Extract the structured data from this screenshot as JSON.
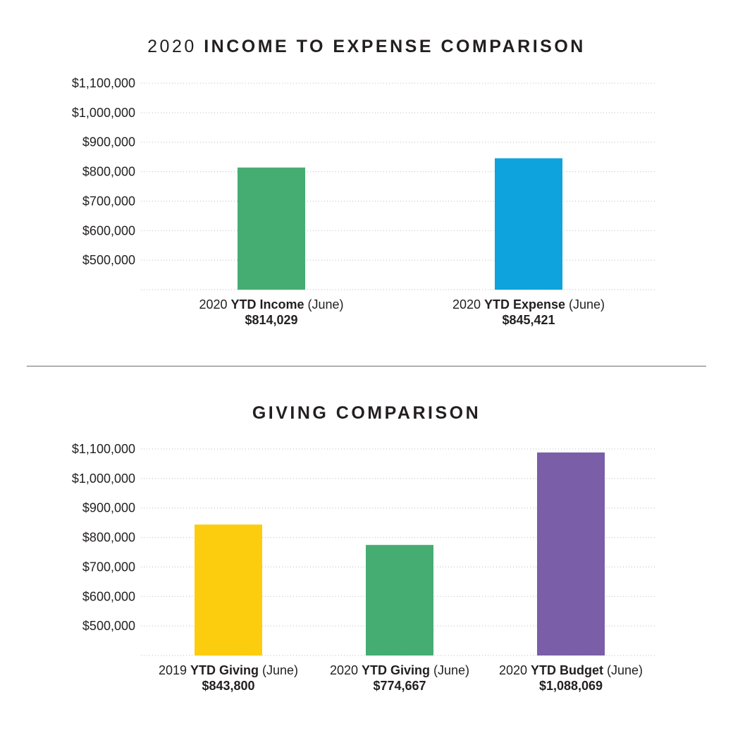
{
  "chart_data": [
    {
      "type": "bar",
      "title_prefix": "2020",
      "title": "INCOME TO EXPENSE COMPARISON",
      "yticks": [
        "$1,100,000",
        "$1,000,000",
        "$900,000",
        "$800,000",
        "$700,000",
        "$600,000",
        "$500,000"
      ],
      "ytick_values": [
        1100000,
        1000000,
        900000,
        800000,
        700000,
        600000,
        500000
      ],
      "ylim": [
        400000,
        1100000
      ],
      "grid": true,
      "categories": [
        {
          "pre": "2020 ",
          "bold": "YTD Income",
          "post": " (June)",
          "value_label": "$814,029"
        },
        {
          "pre": "2020 ",
          "bold": "YTD Expense",
          "post": " (June)",
          "value_label": "$845,421"
        }
      ],
      "values": [
        814029,
        845421
      ],
      "colors": [
        "#45ad72",
        "#0ea3dc"
      ]
    },
    {
      "type": "bar",
      "title_prefix": "",
      "title": "GIVING COMPARISON",
      "yticks": [
        "$1,100,000",
        "$1,000,000",
        "$900,000",
        "$800,000",
        "$700,000",
        "$600,000",
        "$500,000"
      ],
      "ytick_values": [
        1100000,
        1000000,
        900000,
        800000,
        700000,
        600000,
        500000
      ],
      "ylim": [
        400000,
        1100000
      ],
      "grid": true,
      "categories": [
        {
          "pre": "2019 ",
          "bold": "YTD Giving",
          "post": " (June)",
          "value_label": "$843,800"
        },
        {
          "pre": "2020 ",
          "bold": "YTD Giving",
          "post": " (June)",
          "value_label": "$774,667"
        },
        {
          "pre": "2020 ",
          "bold": "YTD Budget",
          "post": " (June)",
          "value_label": "$1,088,069"
        }
      ],
      "values": [
        843800,
        774667,
        1088069
      ],
      "colors": [
        "#fccc0f",
        "#45ad72",
        "#7a5ea8"
      ]
    }
  ]
}
